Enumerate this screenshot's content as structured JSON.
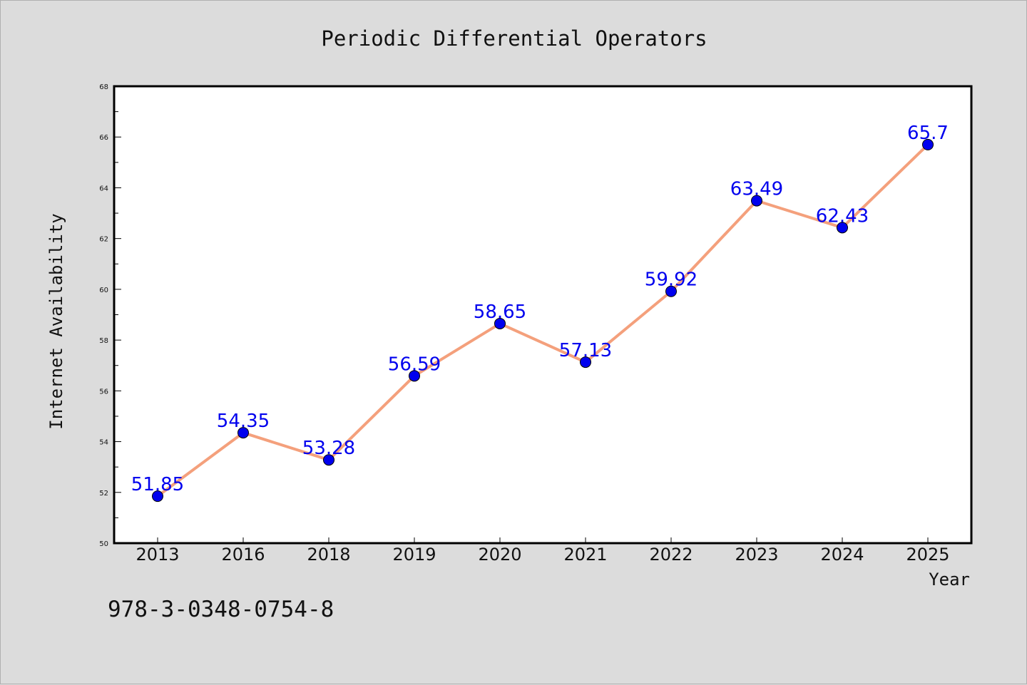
{
  "chart_data": {
    "type": "line",
    "title": "Periodic Differential Operators",
    "xlabel": "Year",
    "ylabel": "Internet Availability",
    "categories": [
      "2013",
      "2016",
      "2018",
      "2019",
      "2020",
      "2021",
      "2022",
      "2023",
      "2024",
      "2025"
    ],
    "series": [
      {
        "values": [
          51.85,
          54.35,
          53.28,
          56.59,
          58.65,
          57.13,
          59.92,
          63.49,
          62.43,
          65.7
        ],
        "labels": [
          "51.85",
          "54.35",
          "53.28",
          "56.59",
          "58.65",
          "57.13",
          "59.92",
          "63.49",
          "62.43",
          "65.7"
        ],
        "line_color": "#f4a07c",
        "marker_color": "#0000ee"
      }
    ],
    "ylim": [
      50,
      68
    ],
    "yticks": [
      "50",
      "52",
      "54",
      "56",
      "58",
      "60",
      "62",
      "64",
      "66",
      "68"
    ],
    "grid": false,
    "legend": "none"
  },
  "annotation": {
    "isbn": "978-3-0348-0754-8"
  }
}
